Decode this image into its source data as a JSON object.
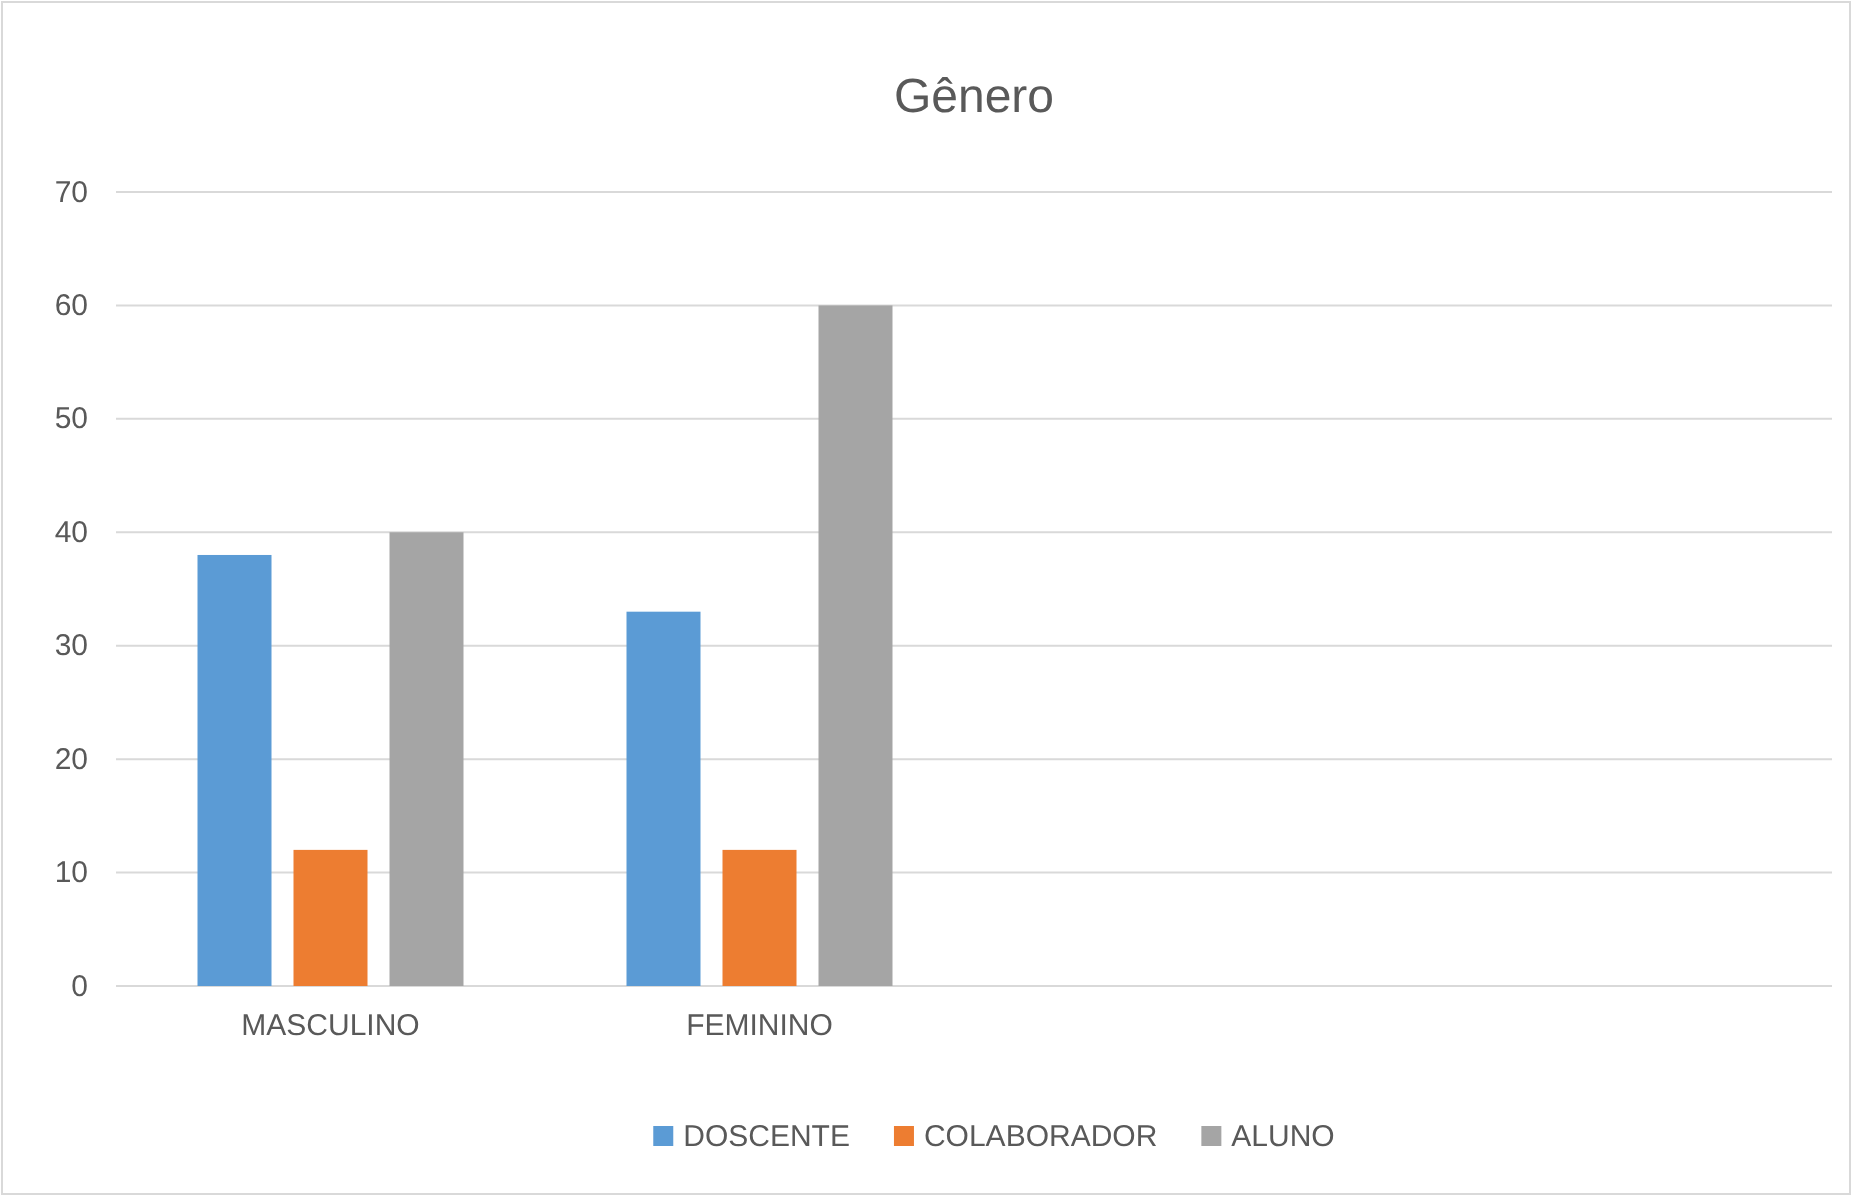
{
  "chart_data": {
    "type": "bar",
    "title": "Gênero",
    "categories": [
      "MASCULINO",
      "FEMININO",
      null,
      null
    ],
    "series": [
      {
        "name": "DOSCENTE",
        "color": "#5b9bd5",
        "values": [
          38,
          33,
          null,
          null
        ]
      },
      {
        "name": "COLABORADOR",
        "color": "#ed7d31",
        "values": [
          12,
          12,
          null,
          null
        ]
      },
      {
        "name": "ALUNO",
        "color": "#a5a5a5",
        "values": [
          40,
          60,
          null,
          null
        ]
      }
    ],
    "ylim": [
      0,
      70
    ],
    "yticks": [
      0,
      10,
      20,
      30,
      40,
      50,
      60,
      70
    ],
    "grid": "y",
    "legend": "bottom"
  }
}
